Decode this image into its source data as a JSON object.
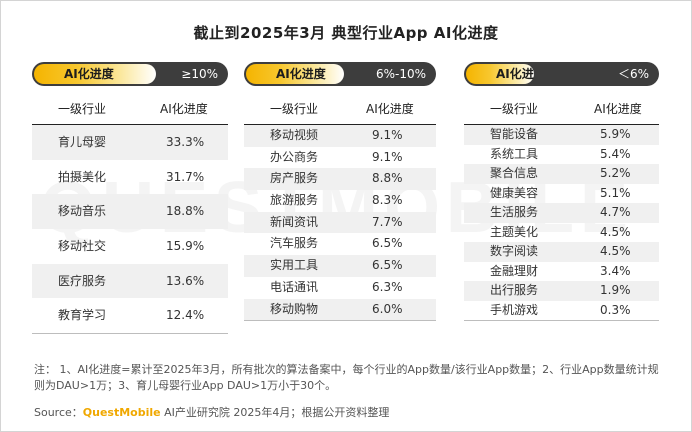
{
  "title": "截止到2025年3月 典型行业App AI化进度",
  "watermark": "QUESTMOBILE",
  "chart_data": {
    "type": "table",
    "columns": [
      "一级行业",
      "AI化进度"
    ],
    "panels": [
      {
        "label": "AI化进度",
        "range": "≥10%",
        "rows": [
          {
            "industry": "育儿母婴",
            "value": "33.3%"
          },
          {
            "industry": "拍摄美化",
            "value": "31.7%"
          },
          {
            "industry": "移动音乐",
            "value": "18.8%"
          },
          {
            "industry": "移动社交",
            "value": "15.9%"
          },
          {
            "industry": "医疗服务",
            "value": "13.6%"
          },
          {
            "industry": "教育学习",
            "value": "12.4%"
          }
        ]
      },
      {
        "label": "AI化进度",
        "range": "6%-10%",
        "rows": [
          {
            "industry": "移动视频",
            "value": "9.1%"
          },
          {
            "industry": "办公商务",
            "value": "9.1%"
          },
          {
            "industry": "房产服务",
            "value": "8.8%"
          },
          {
            "industry": "旅游服务",
            "value": "8.3%"
          },
          {
            "industry": "新闻资讯",
            "value": "7.7%"
          },
          {
            "industry": "汽车服务",
            "value": "6.5%"
          },
          {
            "industry": "实用工具",
            "value": "6.5%"
          },
          {
            "industry": "电话通讯",
            "value": "6.3%"
          },
          {
            "industry": "移动购物",
            "value": "6.0%"
          }
        ]
      },
      {
        "label": "AI化进度",
        "range": "＜6%",
        "rows": [
          {
            "industry": "智能设备",
            "value": "5.9%"
          },
          {
            "industry": "系统工具",
            "value": "5.4%"
          },
          {
            "industry": "聚合信息",
            "value": "5.2%"
          },
          {
            "industry": "健康美容",
            "value": "5.1%"
          },
          {
            "industry": "生活服务",
            "value": "4.7%"
          },
          {
            "industry": "主题美化",
            "value": "4.5%"
          },
          {
            "industry": "数字阅读",
            "value": "4.5%"
          },
          {
            "industry": "金融理财",
            "value": "3.4%"
          },
          {
            "industry": "出行服务",
            "value": "1.9%"
          },
          {
            "industry": "手机游戏",
            "value": "0.3%"
          }
        ]
      }
    ]
  },
  "note": "注： 1、AI化进度=累计至2025年3月，所有批次的算法备案中，每个行业的App数量/该行业App数量；2、行业App数量统计规则为DAU>1万；3、育儿母婴行业App DAU>1万小于30个。",
  "source": {
    "prefix": "Source：",
    "brand": "QuestMobile",
    "suffix": " AI产业研究院 2025年4月；根据公开资料整理"
  }
}
